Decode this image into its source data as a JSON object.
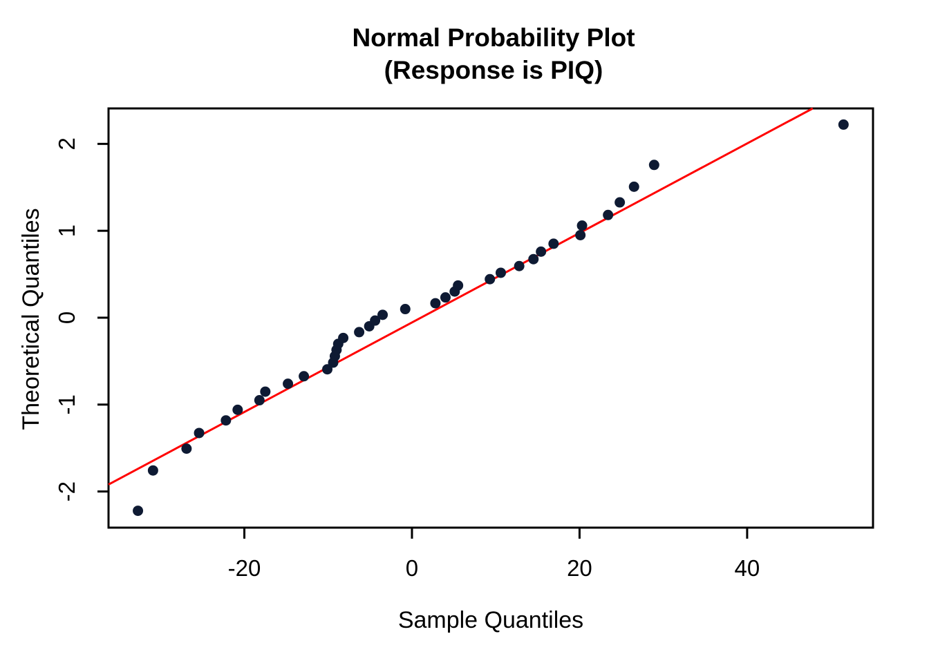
{
  "title": {
    "line1": "Normal Probability Plot",
    "line2": "(Response is PIQ)"
  },
  "axes": {
    "xlabel": "Sample Quantiles",
    "ylabel": "Theoretical Quantiles",
    "x_tick_labels": [
      "-20",
      "0",
      "20",
      "40"
    ],
    "y_tick_labels": [
      "-2",
      "-1",
      "0",
      "1",
      "2"
    ]
  },
  "colors": {
    "point": "#0e1a33",
    "reference_line": "#ff0000",
    "axis": "#000000",
    "background": "#ffffff",
    "text": "#000000"
  },
  "chart_data": {
    "type": "scatter",
    "title": "Normal Probability Plot",
    "subtitle": "(Response is PIQ)",
    "xlabel": "Sample Quantiles",
    "ylabel": "Theoretical Quantiles",
    "xlim": [
      -36.21,
      55.02
    ],
    "ylim": [
      -2.416,
      2.408
    ],
    "x_ticks": [
      -20,
      0,
      20,
      40
    ],
    "y_ticks": [
      -2,
      -1,
      0,
      1,
      2
    ],
    "grid": false,
    "legend": null,
    "n_points": 38,
    "series": [
      {
        "name": "sample-vs-theoretical-quantiles",
        "points": [
          [
            -32.7,
            -2.222
          ],
          [
            -30.9,
            -1.758
          ],
          [
            -26.9,
            -1.507
          ],
          [
            -25.4,
            -1.327
          ],
          [
            -22.2,
            -1.182
          ],
          [
            -20.8,
            -1.06
          ],
          [
            -18.2,
            -0.95
          ],
          [
            -17.5,
            -0.851
          ],
          [
            -14.8,
            -0.76
          ],
          [
            -12.9,
            -0.674
          ],
          [
            -10.1,
            -0.594
          ],
          [
            -9.4,
            -0.517
          ],
          [
            -9.2,
            -0.443
          ],
          [
            -9.0,
            -0.371
          ],
          [
            -8.8,
            -0.301
          ],
          [
            -8.2,
            -0.233
          ],
          [
            -6.3,
            -0.166
          ],
          [
            -5.1,
            -0.099
          ],
          [
            -4.4,
            -0.033
          ],
          [
            -3.5,
            0.033
          ],
          [
            -0.8,
            0.099
          ],
          [
            2.8,
            0.166
          ],
          [
            4.0,
            0.233
          ],
          [
            5.1,
            0.301
          ],
          [
            5.5,
            0.371
          ],
          [
            9.3,
            0.443
          ],
          [
            10.6,
            0.517
          ],
          [
            12.8,
            0.594
          ],
          [
            14.5,
            0.674
          ],
          [
            15.4,
            0.76
          ],
          [
            16.9,
            0.851
          ],
          [
            20.1,
            0.95
          ],
          [
            20.3,
            1.06
          ],
          [
            23.4,
            1.182
          ],
          [
            24.8,
            1.327
          ],
          [
            26.5,
            1.507
          ],
          [
            28.9,
            1.758
          ],
          [
            51.5,
            2.222
          ]
        ]
      }
    ],
    "reference_line": {
      "type": "qqline",
      "slope": 0.0515,
      "intercept": -0.055
    }
  }
}
